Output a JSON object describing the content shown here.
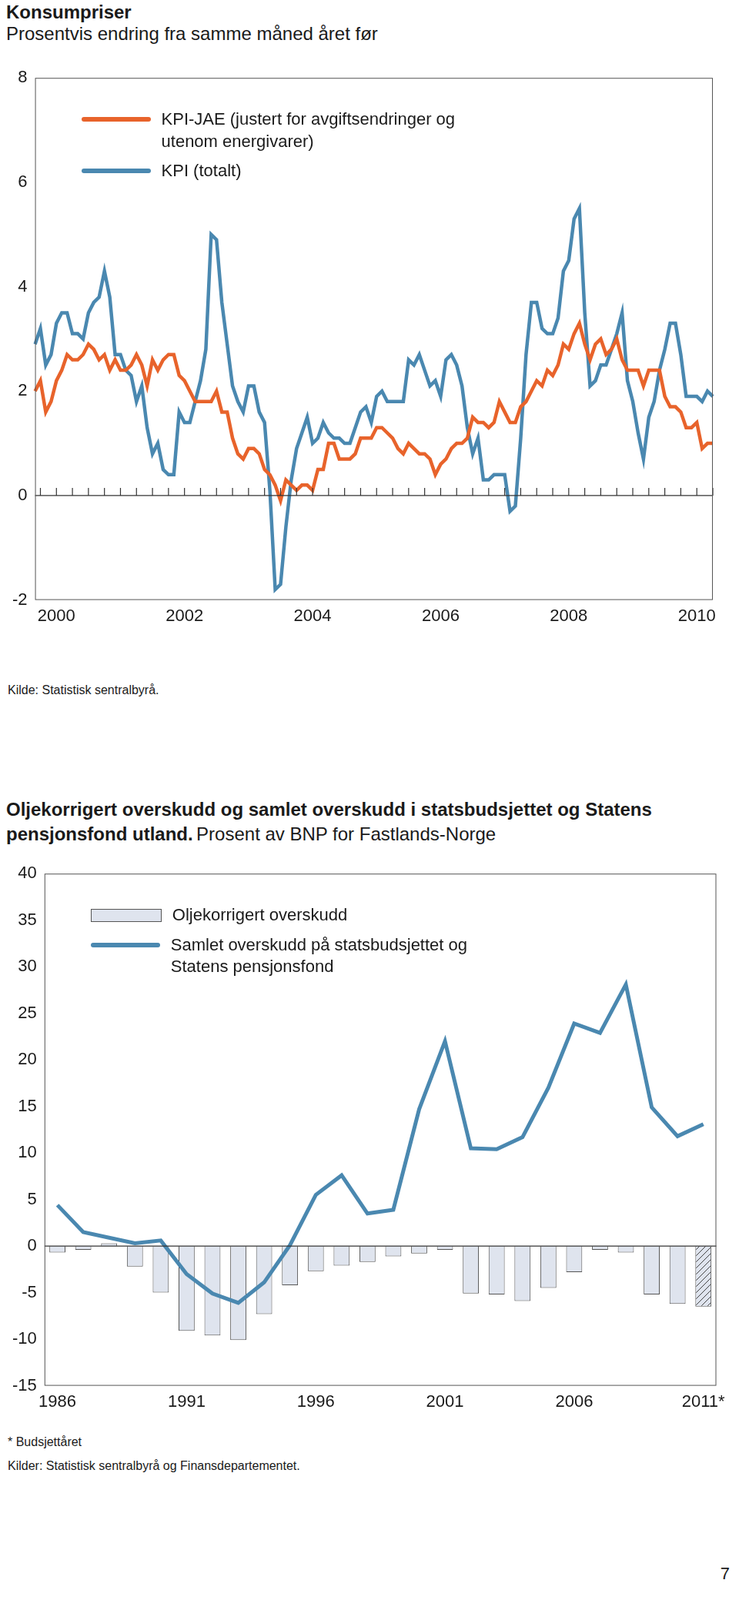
{
  "chart_data": [
    {
      "type": "line",
      "title": "Konsumpriser",
      "subtitle": "Prosentvis endring fra samme måned året før",
      "source": "Kilde: Statistisk sentralbyrå.",
      "categories": [
        null,
        null,
        null,
        null,
        "2000",
        null,
        null,
        null,
        null,
        null,
        null,
        null,
        null,
        null,
        null,
        null,
        null,
        null,
        null,
        null,
        null,
        null,
        null,
        null,
        null,
        null,
        null,
        null,
        "2002",
        null,
        null,
        null,
        null,
        null,
        null,
        null,
        null,
        null,
        null,
        null,
        null,
        null,
        null,
        null,
        null,
        null,
        null,
        null,
        null,
        null,
        null,
        null,
        "2004",
        null,
        null,
        null,
        null,
        null,
        null,
        null,
        null,
        null,
        null,
        null,
        null,
        null,
        null,
        null,
        null,
        null,
        null,
        null,
        null,
        null,
        null,
        null,
        "2006",
        null,
        null,
        null,
        null,
        null,
        null,
        null,
        null,
        null,
        null,
        null,
        null,
        null,
        null,
        null,
        null,
        null,
        null,
        null,
        null,
        null,
        null,
        null,
        "2008",
        null,
        null,
        null,
        null,
        null,
        null,
        null,
        null,
        null,
        null,
        null,
        null,
        null,
        null,
        null,
        null,
        null,
        null,
        null,
        null,
        null,
        null,
        null,
        "2010",
        null,
        null,
        null
      ],
      "series": [
        {
          "name": "KPI-JAE (justert for avgiftsendringer og utenom energivarer)",
          "color": "#e8632b",
          "values": [
            2.0,
            2.2,
            1.6,
            1.8,
            2.2,
            2.4,
            2.7,
            2.6,
            2.6,
            2.7,
            2.9,
            2.8,
            2.6,
            2.7,
            2.4,
            2.6,
            2.4,
            2.4,
            2.5,
            2.7,
            2.5,
            2.1,
            2.6,
            2.4,
            2.6,
            2.7,
            2.7,
            2.3,
            2.2,
            2.0,
            1.8,
            1.8,
            1.8,
            1.8,
            2.0,
            1.6,
            1.6,
            1.1,
            0.8,
            0.7,
            0.9,
            0.9,
            0.8,
            0.5,
            0.4,
            0.2,
            -0.1,
            0.3,
            0.2,
            0.1,
            0.2,
            0.2,
            0.1,
            0.5,
            0.5,
            1.0,
            1.0,
            0.7,
            0.7,
            0.7,
            0.8,
            1.1,
            1.1,
            1.1,
            1.3,
            1.3,
            1.2,
            1.1,
            0.9,
            0.8,
            1.0,
            0.9,
            0.8,
            0.8,
            0.7,
            0.4,
            0.6,
            0.7,
            0.9,
            1.0,
            1.0,
            1.1,
            1.5,
            1.4,
            1.4,
            1.3,
            1.4,
            1.8,
            1.6,
            1.4,
            1.4,
            1.7,
            1.8,
            2.0,
            2.2,
            2.1,
            2.4,
            2.3,
            2.5,
            2.9,
            2.8,
            3.1,
            3.3,
            2.9,
            2.6,
            2.9,
            3.0,
            2.7,
            2.8,
            3.0,
            2.6,
            2.4,
            2.4,
            2.4,
            2.1,
            2.4,
            2.4,
            2.4,
            1.9,
            1.7,
            1.7,
            1.6,
            1.3,
            1.3,
            1.4,
            0.9,
            1.0,
            1.0
          ]
        },
        {
          "name": "KPI (totalt)",
          "color": "#4a88b0",
          "values": [
            2.9,
            3.2,
            2.5,
            2.7,
            3.3,
            3.5,
            3.5,
            3.1,
            3.1,
            3.0,
            3.5,
            3.7,
            3.8,
            4.3,
            3.8,
            2.7,
            2.7,
            2.4,
            2.3,
            1.8,
            2.1,
            1.3,
            0.8,
            1.0,
            0.5,
            0.4,
            0.4,
            1.6,
            1.4,
            1.4,
            1.8,
            2.2,
            2.8,
            5.0,
            4.9,
            3.7,
            2.9,
            2.1,
            1.8,
            1.6,
            2.1,
            2.1,
            1.6,
            1.4,
            0.1,
            -1.8,
            -1.7,
            -0.6,
            0.3,
            0.9,
            1.2,
            1.5,
            1.0,
            1.1,
            1.4,
            1.2,
            1.1,
            1.1,
            1.0,
            1.0,
            1.3,
            1.6,
            1.7,
            1.4,
            1.9,
            2.0,
            1.8,
            1.8,
            1.8,
            1.8,
            2.6,
            2.5,
            2.7,
            2.4,
            2.1,
            2.2,
            1.9,
            2.6,
            2.7,
            2.5,
            2.1,
            1.3,
            0.8,
            1.1,
            0.3,
            0.3,
            0.4,
            0.4,
            0.4,
            -0.3,
            -0.2,
            1.1,
            2.7,
            3.7,
            3.7,
            3.2,
            3.1,
            3.1,
            3.4,
            4.3,
            4.5,
            5.3,
            5.5,
            3.5,
            2.1,
            2.2,
            2.5,
            2.5,
            2.8,
            3.1,
            3.5,
            2.2,
            1.8,
            1.2,
            0.7,
            1.5,
            1.8,
            2.4,
            2.8,
            3.3,
            3.3,
            2.7,
            1.9,
            1.9,
            1.9,
            1.8,
            2.0,
            1.9
          ]
        }
      ],
      "ylim": [
        -2,
        8
      ],
      "yticks": [
        -2,
        0,
        2,
        4,
        6,
        8
      ],
      "grid": false,
      "legend": "upper left"
    },
    {
      "type": "bar",
      "title": "Oljekorrigert overskudd og samlet overskudd i statsbudsjettet og Statens pensjonsfond utland.",
      "subtitle": "Prosent av BNP for Fastlands-Norge",
      "notes": [
        "* Budsjettåret",
        "Kilder: Statistisk sentralbyrå og Finansdepartementet."
      ],
      "categories": [
        "1986",
        null,
        null,
        null,
        null,
        "1991",
        null,
        null,
        null,
        null,
        "1996",
        null,
        null,
        null,
        null,
        "2001",
        null,
        null,
        null,
        null,
        "2006",
        null,
        null,
        null,
        null,
        "2011*"
      ],
      "series": [
        {
          "name": "Oljekorrigert overskudd",
          "type": "bar",
          "color": "#dfe4ee",
          "values": [
            -0.7,
            -0.4,
            0.3,
            -2.2,
            -5.0,
            -9.1,
            -9.6,
            -10.1,
            -7.3,
            -4.2,
            -2.7,
            -2.1,
            -1.7,
            -1.1,
            -0.8,
            -0.4,
            -5.1,
            -5.2,
            -5.9,
            -4.5,
            -2.8,
            -0.4,
            -0.7,
            -5.2,
            -6.2,
            -6.5
          ]
        },
        {
          "name": "Samlet overskudd på statsbudsjettet og Statens pensjonsfond",
          "type": "line",
          "color": "#4a88b0",
          "values": [
            4.4,
            1.5,
            0.9,
            0.3,
            0.6,
            -3.0,
            -5.1,
            -6.1,
            -3.9,
            0.1,
            5.5,
            7.6,
            3.5,
            3.9,
            14.7,
            22.0,
            10.5,
            10.4,
            11.7,
            17.0,
            23.9,
            22.9,
            28.1,
            14.9,
            11.8,
            13.1
          ]
        }
      ],
      "ylim": [
        -15,
        40
      ],
      "yticks": [
        -15,
        -10,
        -5,
        0,
        5,
        10,
        15,
        20,
        25,
        30,
        35,
        40
      ],
      "grid": false,
      "legend": "upper left"
    }
  ],
  "page_number": "7"
}
